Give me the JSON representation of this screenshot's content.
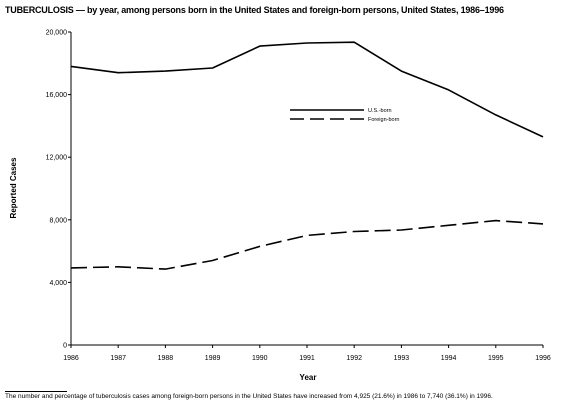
{
  "title": {
    "lead": "TUBERCULOSIS",
    "rest": " — by year, among persons born in the United States and foreign-born persons, United States, 1986–1996"
  },
  "footnote": "The number and percentage of tuberculosis cases among foreign-born persons in the United States have increased from 4,925 (21.6%) in 1986 to 7,740 (36.1%) in 1996.",
  "chart_data": {
    "type": "line",
    "xlabel": "Year",
    "ylabel": "Reported Cases",
    "x": [
      1986,
      1987,
      1988,
      1989,
      1990,
      1991,
      1992,
      1993,
      1994,
      1995,
      1996
    ],
    "ylim": [
      0,
      20000
    ],
    "yticks": [
      0,
      4000,
      8000,
      12000,
      16000,
      20000
    ],
    "ytick_labels": [
      "0",
      "4,000",
      "8,000",
      "12,000",
      "16,000",
      "20,000"
    ],
    "grid": false,
    "legend_position": "upper-right",
    "series": [
      {
        "name": "U.S.-born",
        "style": "solid",
        "values": [
          17800,
          17400,
          17500,
          17700,
          19100,
          19300,
          19350,
          17500,
          16300,
          14700,
          13300
        ]
      },
      {
        "name": "Foreign-born",
        "style": "dashed",
        "values": [
          4925,
          5000,
          4850,
          5400,
          6300,
          7000,
          7250,
          7350,
          7650,
          7950,
          7740
        ]
      }
    ]
  }
}
